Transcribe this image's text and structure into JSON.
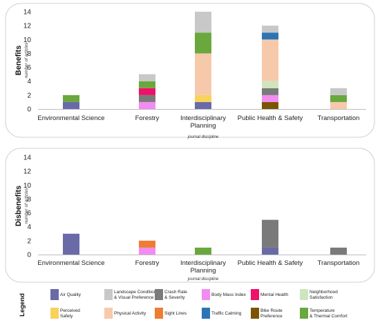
{
  "chart_data": [
    {
      "type": "bar",
      "stacked": true,
      "ylabel": "Benefits",
      "ylabel_sub": "number of articles",
      "xlabel": "journal discipline",
      "ylim": [
        0,
        14
      ],
      "yticks": [
        0,
        2,
        4,
        6,
        8,
        10,
        12,
        14
      ],
      "categories": [
        "Environmental Science",
        "Forestry",
        "Interdisciplinary Planning",
        "Public Health & Safety",
        "Transportation"
      ],
      "series": [
        {
          "name": "Air Quality",
          "values": [
            1,
            0,
            1,
            0,
            0
          ]
        },
        {
          "name": "Bike Route Preference",
          "values": [
            0,
            0,
            0,
            1,
            0
          ]
        },
        {
          "name": "Body Mass Index",
          "values": [
            0,
            1,
            0,
            1,
            0
          ]
        },
        {
          "name": "Perceived Safety",
          "values": [
            0,
            0,
            1,
            0,
            0
          ]
        },
        {
          "name": "Crash Rate & Severity",
          "values": [
            0,
            1,
            0,
            1,
            0
          ]
        },
        {
          "name": "Mental Health",
          "values": [
            0,
            1,
            0,
            0,
            0
          ]
        },
        {
          "name": "Neighborhood Satisfaction",
          "values": [
            0,
            0,
            0,
            1,
            0
          ]
        },
        {
          "name": "Physical Activity",
          "values": [
            0,
            0,
            6,
            6,
            1
          ]
        },
        {
          "name": "Traffic Calming",
          "values": [
            0,
            0,
            0,
            1,
            0
          ]
        },
        {
          "name": "Temperature & Thermal Comfort",
          "values": [
            1,
            1,
            3,
            0,
            1
          ]
        },
        {
          "name": "Landscape Condition & Visual Preference",
          "values": [
            0,
            1,
            3,
            1,
            1
          ]
        }
      ]
    },
    {
      "type": "bar",
      "stacked": true,
      "ylabel": "Disbenefits",
      "ylabel_sub": "number of articles",
      "xlabel": "journal discipline",
      "ylim": [
        0,
        14
      ],
      "yticks": [
        0,
        2,
        4,
        6,
        8,
        10,
        12,
        14
      ],
      "categories": [
        "Environmental Science",
        "Forestry",
        "Interdisciplinary Planning",
        "Public Health & Safety",
        "Transportation"
      ],
      "series": [
        {
          "name": "Air Quality",
          "values": [
            3,
            0,
            0,
            1,
            0
          ]
        },
        {
          "name": "Body Mass Index",
          "values": [
            0,
            1,
            0,
            0,
            0
          ]
        },
        {
          "name": "Sight Lines",
          "values": [
            0,
            1,
            0,
            0,
            0
          ]
        },
        {
          "name": "Temperature & Thermal Comfort",
          "values": [
            0,
            0,
            1,
            0,
            0
          ]
        },
        {
          "name": "Crash Rate & Severity",
          "values": [
            0,
            0,
            0,
            4,
            1
          ]
        }
      ]
    }
  ],
  "legend": {
    "title": "Legend",
    "items": [
      {
        "key": "air_quality",
        "name": "Air Quality",
        "lines": [
          "Air Quality"
        ],
        "color": "#6a6aa8"
      },
      {
        "key": "landscape",
        "name": "Landscape Condition & Visual Preference",
        "lines": [
          "Landscape Condition",
          "& Visual Preference"
        ],
        "color": "#c8c8c8"
      },
      {
        "key": "crash",
        "name": "Crash Rate & Severity",
        "lines": [
          "Crash Rate",
          "& Severity"
        ],
        "color": "#7a7a7a"
      },
      {
        "key": "bmi",
        "name": "Body Mass Index",
        "lines": [
          "Body Mass Index"
        ],
        "color": "#f28cf2"
      },
      {
        "key": "mental",
        "name": "Mental Health",
        "lines": [
          "Mental Health"
        ],
        "color": "#ee1168"
      },
      {
        "key": "neighborhood",
        "name": "Neighborhood Satisfaction",
        "lines": [
          "Neighborhood",
          "Satisfaction"
        ],
        "color": "#cfe6bd"
      },
      {
        "key": "perceived",
        "name": "Perceived Safety",
        "lines": [
          "Perceived",
          "Safety"
        ],
        "color": "#f7d35c"
      },
      {
        "key": "physical",
        "name": "Physical Activity",
        "lines": [
          "Physical Activity"
        ],
        "color": "#f7c9ab"
      },
      {
        "key": "sight",
        "name": "Sight Lines",
        "lines": [
          "Sight Lines"
        ],
        "color": "#ee7d33"
      },
      {
        "key": "traffic",
        "name": "Traffic Calming",
        "lines": [
          "Traffic Calming"
        ],
        "color": "#2e74b5"
      },
      {
        "key": "bike",
        "name": "Bike Route Preference",
        "lines": [
          "Bike Route",
          "Preference"
        ],
        "color": "#7a5500"
      },
      {
        "key": "temperature",
        "name": "Temperature & Thermal Comfort",
        "lines": [
          "Temperature",
          "& Thermal Comfort"
        ],
        "color": "#6aa83e"
      }
    ]
  }
}
